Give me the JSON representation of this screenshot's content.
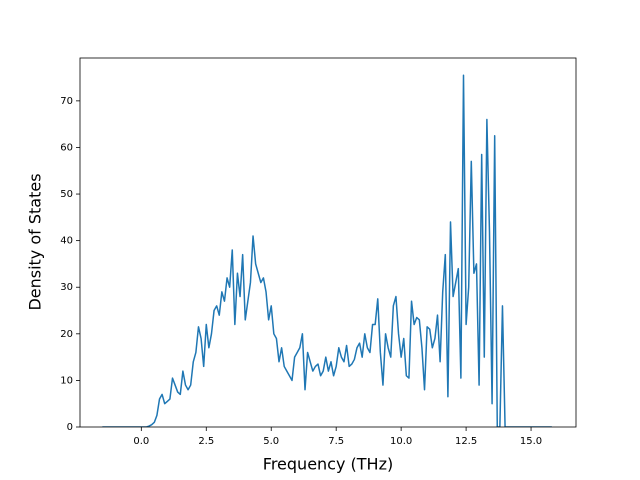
{
  "chart_data": {
    "type": "line",
    "xlabel": "Frequency (THz)",
    "ylabel": "Density of States",
    "x": [
      -1.5,
      -1.4,
      -1.3,
      -1.2,
      -1.1,
      -1.0,
      -0.9,
      -0.8,
      -0.7,
      -0.6,
      -0.5,
      -0.4,
      -0.3,
      -0.2,
      -0.1,
      0.0,
      0.1,
      0.2,
      0.3,
      0.4,
      0.5,
      0.6,
      0.7,
      0.8,
      0.9,
      1.0,
      1.1,
      1.2,
      1.3,
      1.4,
      1.5,
      1.6,
      1.7,
      1.8,
      1.9,
      2.0,
      2.1,
      2.2,
      2.3,
      2.4,
      2.5,
      2.6,
      2.7,
      2.8,
      2.9,
      3.0,
      3.1,
      3.2,
      3.3,
      3.4,
      3.5,
      3.6,
      3.7,
      3.8,
      3.9,
      4.0,
      4.1,
      4.2,
      4.3,
      4.4,
      4.5,
      4.6,
      4.7,
      4.8,
      4.9,
      5.0,
      5.1,
      5.2,
      5.3,
      5.4,
      5.5,
      5.6,
      5.7,
      5.8,
      5.9,
      6.0,
      6.1,
      6.2,
      6.3,
      6.4,
      6.5,
      6.6,
      6.7,
      6.8,
      6.9,
      7.0,
      7.1,
      7.2,
      7.3,
      7.4,
      7.5,
      7.6,
      7.7,
      7.8,
      7.9,
      8.0,
      8.1,
      8.2,
      8.3,
      8.4,
      8.5,
      8.6,
      8.7,
      8.8,
      8.9,
      9.0,
      9.1,
      9.2,
      9.3,
      9.4,
      9.5,
      9.6,
      9.7,
      9.8,
      9.9,
      10.0,
      10.1,
      10.2,
      10.3,
      10.4,
      10.5,
      10.6,
      10.7,
      10.8,
      10.9,
      11.0,
      11.1,
      11.2,
      11.3,
      11.4,
      11.5,
      11.6,
      11.7,
      11.8,
      11.9,
      12.0,
      12.1,
      12.2,
      12.3,
      12.4,
      12.5,
      12.6,
      12.7,
      12.8,
      12.9,
      13.0,
      13.1,
      13.2,
      13.3,
      13.4,
      13.5,
      13.6,
      13.7,
      13.8,
      13.9,
      14.0,
      14.1,
      14.2,
      14.3,
      14.4,
      14.5,
      14.6,
      14.7,
      14.8,
      14.9,
      15.0,
      15.1,
      15.2,
      15.3,
      15.4,
      15.5,
      15.6,
      15.7,
      15.8
    ],
    "values": [
      0,
      0,
      0,
      0,
      0,
      0,
      0,
      0,
      0,
      0,
      0,
      0,
      0,
      0,
      0,
      0,
      0,
      0,
      0.2,
      0.5,
      1,
      2.5,
      6,
      7,
      5,
      5.5,
      6,
      10.5,
      9,
      7.5,
      7,
      12,
      9,
      8,
      9,
      14,
      16,
      21.5,
      19,
      13,
      22,
      17,
      20,
      25,
      26,
      24,
      29,
      27,
      32,
      30,
      38,
      22,
      33,
      28,
      37,
      23,
      27,
      31,
      41,
      35,
      33,
      31,
      32,
      29,
      23,
      26,
      20,
      19,
      14,
      17,
      13,
      12,
      11,
      10,
      15,
      16,
      17,
      20,
      8,
      16,
      14,
      12,
      13,
      13.5,
      11,
      12,
      15,
      12,
      14,
      11,
      13,
      17,
      15,
      14,
      17.5,
      13,
      13.5,
      14.5,
      17,
      18,
      15,
      20,
      17,
      16,
      22,
      22,
      27.5,
      16,
      9,
      20,
      17,
      15,
      26,
      28,
      20,
      15,
      19,
      11,
      10.5,
      27,
      22,
      23.5,
      23,
      17,
      8,
      21.5,
      21,
      17,
      19,
      24,
      14,
      29,
      37,
      6.5,
      44,
      28,
      31,
      34,
      10.5,
      75.5,
      22,
      30,
      57,
      33,
      35,
      9,
      58.5,
      15,
      66,
      42,
      5,
      62.5,
      0,
      0,
      26,
      0,
      0,
      0,
      0,
      0,
      0,
      0,
      0,
      0,
      0,
      0,
      0,
      0,
      0,
      0,
      0,
      0,
      0,
      0
    ],
    "color": "#1f77b4",
    "xlim": [
      -2.36,
      16.73
    ],
    "xticks": [
      {
        "value": 0,
        "label": "0.0"
      },
      2.5,
      {
        "value": 5,
        "label": "5.0"
      },
      7.5,
      {
        "value": 10,
        "label": "10.0"
      },
      12.5,
      {
        "value": 15,
        "label": "15.0"
      }
    ],
    "ylim": [
      0,
      79.2
    ],
    "yticks": [
      0,
      10,
      20,
      30,
      40,
      50,
      60,
      70
    ],
    "grid": false
  }
}
